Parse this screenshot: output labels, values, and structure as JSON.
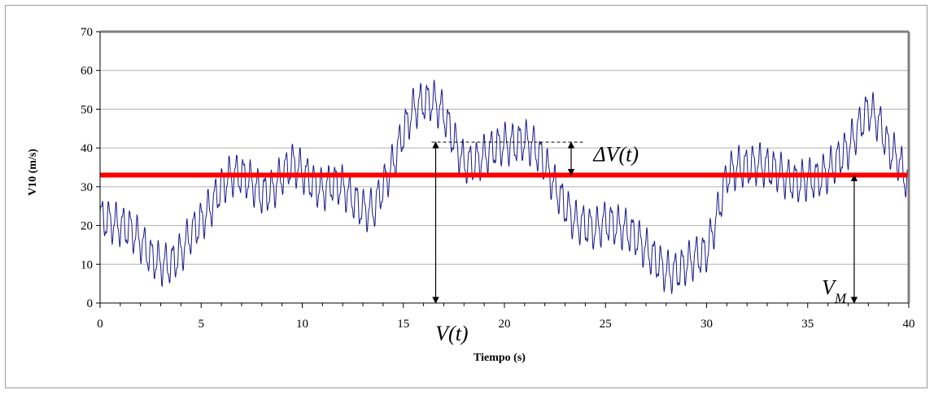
{
  "chart_data": {
    "type": "line",
    "title": "",
    "xlabel": "Tiempo (s)",
    "ylabel": "V10 (m/s)",
    "xlim": [
      0,
      40
    ],
    "ylim": [
      0,
      70
    ],
    "xticks": [
      0,
      5,
      10,
      15,
      20,
      25,
      30,
      35,
      40
    ],
    "yticks": [
      0,
      10,
      20,
      30,
      40,
      50,
      60,
      70
    ],
    "grid": "horizontal",
    "legend": "none",
    "colors": {
      "series": "#1a1a8c",
      "mean": "#ff0000",
      "grid": "#b0b0b0",
      "frame": "#808080"
    },
    "mean_line": {
      "y": 33
    },
    "series": [
      {
        "color": "#1a1a8c",
        "oscillation_amplitude": 4.5,
        "oscillation_period": 0.35,
        "x": [
          0,
          0.5,
          1,
          1.5,
          2,
          2.5,
          3,
          3.5,
          4,
          4.5,
          5,
          5.5,
          6,
          6.5,
          7,
          7.5,
          8,
          8.5,
          9,
          9.5,
          10,
          10.5,
          11,
          11.5,
          12,
          12.5,
          13,
          13.5,
          14,
          14.5,
          15,
          15.5,
          16,
          16.5,
          17,
          17.5,
          18,
          18.5,
          19,
          19.5,
          20,
          20.5,
          21,
          21.5,
          22,
          22.5,
          23,
          23.5,
          24,
          24.5,
          25,
          25.5,
          26,
          26.5,
          27,
          27.5,
          28,
          28.5,
          29,
          29.5,
          30,
          30.5,
          31,
          31.5,
          32,
          32.5,
          33,
          33.5,
          34,
          34.5,
          35,
          35.5,
          36,
          36.5,
          37,
          37.5,
          38,
          38.5,
          39,
          39.5,
          40
        ],
        "y": [
          22,
          21,
          20,
          19,
          16,
          12,
          10,
          10,
          13,
          18,
          21,
          25,
          30,
          33,
          33,
          31,
          28,
          29,
          33,
          36,
          34,
          31,
          29,
          31,
          30,
          27,
          24,
          24,
          30,
          36,
          44,
          50,
          52,
          52,
          49,
          42,
          36,
          36,
          38,
          40,
          41,
          41,
          42,
          40,
          36,
          30,
          25,
          21,
          20,
          19,
          21,
          20,
          19,
          17,
          14,
          11,
          8,
          8,
          10,
          12,
          13,
          22,
          33,
          35,
          35,
          36,
          35,
          34,
          32,
          31,
          32,
          32,
          34,
          37,
          40,
          45,
          50,
          47,
          40,
          37,
          30
        ]
      }
    ],
    "annotations": [
      {
        "text": "ΔV(t)",
        "kind": "label"
      },
      {
        "text": "V(t)",
        "kind": "label"
      },
      {
        "text": "V",
        "sub": "M",
        "kind": "label"
      }
    ],
    "arrows": [
      {
        "name": "vt-arrow",
        "x": 16.6,
        "y_from": 0,
        "y_to": 41.5
      },
      {
        "name": "delta-arrow",
        "x": 23.3,
        "y_from": 33,
        "y_to": 41.5
      },
      {
        "name": "vm-arrow",
        "x": 37.3,
        "y_from": 0,
        "y_to": 33
      }
    ],
    "dashed_reference": {
      "x_from": 16.4,
      "x_to": 24.0,
      "y": 41.5
    }
  }
}
